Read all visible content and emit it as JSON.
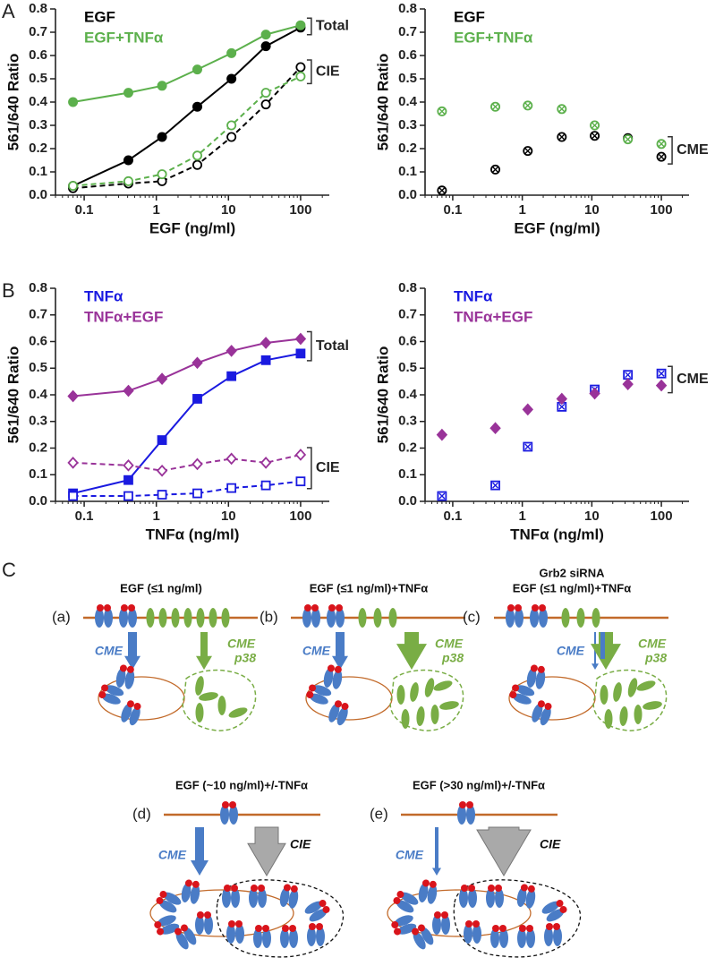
{
  "panel_labels": [
    "A",
    "B",
    "C"
  ],
  "chart_data": [
    {
      "type": "line",
      "x_label": "EGF (ng/ml)",
      "y_label": "561/640 Ratio",
      "xscale": "log",
      "x": [
        0.07,
        0.41,
        1.2,
        3.7,
        11,
        33,
        100
      ],
      "xlim": [
        0.04,
        250
      ],
      "xticks": [
        0.1,
        1,
        10,
        100
      ],
      "ylim": [
        0,
        0.8
      ],
      "yticks": [
        {
          "value": 0,
          "label": "0.0"
        },
        0.1,
        0.2,
        0.3,
        0.4,
        0.5,
        0.6,
        0.7,
        0.8
      ],
      "annotations": [
        "Total",
        "CIE"
      ],
      "series": [
        {
          "name": "EGF",
          "color": "#000000",
          "marker": "circle",
          "line_style": "solid",
          "values": [
            0.04,
            0.15,
            0.25,
            0.38,
            0.5,
            0.64,
            0.72
          ]
        },
        {
          "name": "EGF+TNFα",
          "color": "#5cb04c",
          "marker": "circle",
          "line_style": "solid",
          "values": [
            0.4,
            0.44,
            0.47,
            0.54,
            0.61,
            0.69,
            0.73
          ]
        },
        {
          "color": "#000000",
          "marker": "circle-open",
          "line_style": "dashed",
          "values": [
            0.03,
            0.05,
            0.06,
            0.13,
            0.25,
            0.39,
            0.55
          ]
        },
        {
          "color": "#5cb04c",
          "marker": "circle-open",
          "line_style": "dashed",
          "values": [
            0.04,
            0.06,
            0.09,
            0.17,
            0.3,
            0.44,
            0.51
          ]
        }
      ]
    },
    {
      "type": "scatter",
      "x_label": "EGF (ng/ml)",
      "y_label": "561/640 Ratio",
      "xscale": "log",
      "x": [
        0.07,
        0.41,
        1.2,
        3.7,
        11,
        33,
        100
      ],
      "xlim": [
        0.04,
        250
      ],
      "xticks": [
        0.1,
        1,
        10,
        100
      ],
      "ylim": [
        0,
        0.8
      ],
      "yticks": [
        {
          "value": 0,
          "label": "0.0"
        },
        0.1,
        0.2,
        0.3,
        0.4,
        0.5,
        0.6,
        0.7,
        0.8
      ],
      "annotations": [
        "CME"
      ],
      "series": [
        {
          "name": "EGF",
          "color": "#000000",
          "marker": "circle-cross",
          "values": [
            0.02,
            0.11,
            0.19,
            0.25,
            0.255,
            0.245,
            0.165
          ]
        },
        {
          "name": "EGF+TNFα",
          "color": "#5cb04c",
          "marker": "circle-cross",
          "values": [
            0.36,
            0.38,
            0.385,
            0.37,
            0.3,
            0.24,
            0.22
          ]
        }
      ]
    },
    {
      "type": "line",
      "x_label": "TNFα (ng/ml)",
      "y_label": "561/640 Ratio",
      "xscale": "log",
      "x": [
        0.07,
        0.41,
        1.2,
        3.7,
        11,
        33,
        100
      ],
      "xlim": [
        0.04,
        250
      ],
      "xticks": [
        0.1,
        1,
        10,
        100
      ],
      "ylim": [
        0,
        0.8
      ],
      "yticks": [
        {
          "value": 0,
          "label": "0.0"
        },
        0.1,
        0.2,
        0.3,
        0.4,
        0.5,
        0.6,
        0.7,
        0.8
      ],
      "annotations": [
        "Total",
        "CIE"
      ],
      "series": [
        {
          "name": "TNFα",
          "color": "#1a1ae0",
          "marker": "square",
          "line_style": "solid",
          "values": [
            0.03,
            0.08,
            0.23,
            0.385,
            0.47,
            0.53,
            0.555
          ]
        },
        {
          "name": "TNFα+EGF",
          "color": "#993399",
          "marker": "diamond",
          "line_style": "solid",
          "values": [
            0.395,
            0.415,
            0.46,
            0.52,
            0.565,
            0.595,
            0.61
          ]
        },
        {
          "color": "#1a1ae0",
          "marker": "square-open",
          "line_style": "dashed",
          "values": [
            0.02,
            0.02,
            0.025,
            0.03,
            0.05,
            0.06,
            0.075
          ]
        },
        {
          "color": "#993399",
          "marker": "diamond-open",
          "line_style": "dashed",
          "values": [
            0.145,
            0.135,
            0.115,
            0.14,
            0.16,
            0.145,
            0.175
          ]
        }
      ]
    },
    {
      "type": "scatter",
      "x_label": "TNFα (ng/ml)",
      "y_label": "561/640 Ratio",
      "xscale": "log",
      "x": [
        0.07,
        0.41,
        1.2,
        3.7,
        11,
        33,
        100
      ],
      "xlim": [
        0.04,
        250
      ],
      "xticks": [
        0.1,
        1,
        10,
        100
      ],
      "ylim": [
        0,
        0.8
      ],
      "yticks": [
        {
          "value": 0,
          "label": "0.0"
        },
        0.1,
        0.2,
        0.3,
        0.4,
        0.5,
        0.6,
        0.7,
        0.8
      ],
      "annotations": [
        "CME"
      ],
      "series": [
        {
          "name": "TNFα",
          "color": "#1a1ae0",
          "marker": "square-cross",
          "values": [
            0.02,
            0.06,
            0.205,
            0.355,
            0.42,
            0.475,
            0.48
          ]
        },
        {
          "name": "TNFα+EGF",
          "color": "#993399",
          "marker": "diamond",
          "values": [
            0.25,
            0.275,
            0.345,
            0.385,
            0.405,
            0.44,
            0.435
          ]
        }
      ]
    }
  ],
  "diagram": {
    "panels": [
      {
        "tag": "(a)",
        "title": [
          "EGF (≤1 ng/ml)"
        ],
        "blue_label": "CME",
        "green_label": "CME",
        "green_sub": "p38"
      },
      {
        "tag": "(b)",
        "title": [
          "EGF (≤1 ng/ml)+TNFα"
        ],
        "blue_label": "CME",
        "green_label": "CME",
        "green_sub": "p38"
      },
      {
        "tag": "(c)",
        "title": [
          "Grb2 siRNA",
          "EGF (≤1 ng/ml)+TNFα"
        ],
        "blue_label": "CME",
        "green_label": "CME",
        "green_sub": "p38"
      },
      {
        "tag": "(d)",
        "title": [
          "EGF (~10 ng/ml)+/-TNFα"
        ],
        "blue_label": "CME",
        "gray_label": "CIE"
      },
      {
        "tag": "(e)",
        "title": [
          "EGF (>30 ng/ml)+/-TNFα"
        ],
        "blue_label": "CME",
        "gray_label": "CIE"
      }
    ]
  }
}
